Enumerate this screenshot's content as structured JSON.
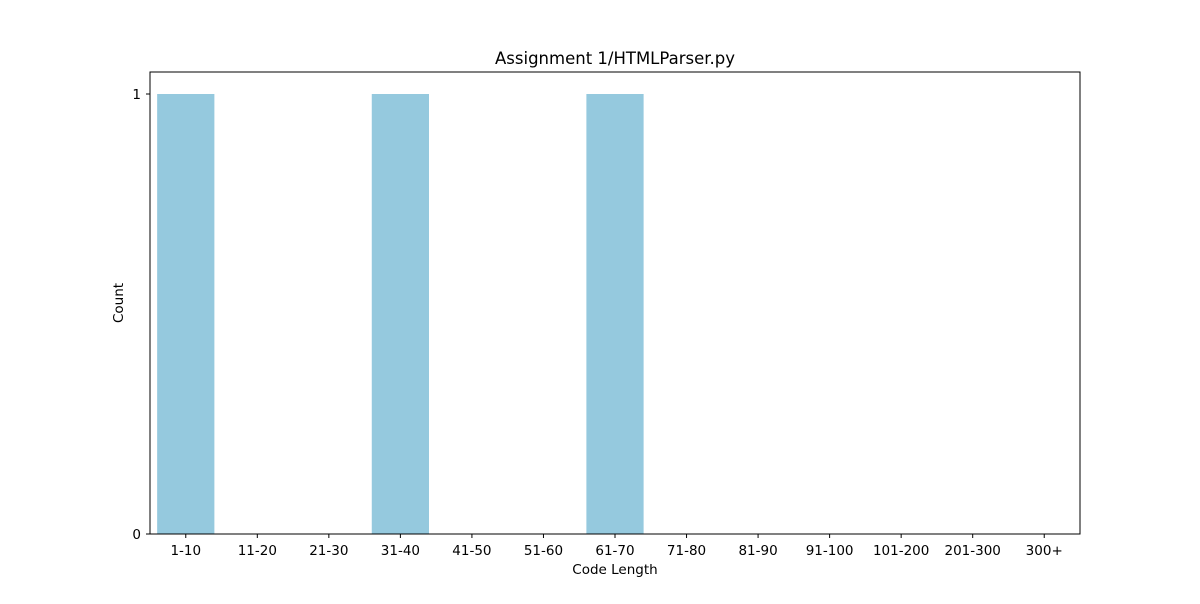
{
  "chart_data": {
    "type": "bar",
    "title": "Assignment 1/HTMLParser.py",
    "xlabel": "Code Length",
    "ylabel": "Count",
    "categories": [
      "1-10",
      "11-20",
      "21-30",
      "31-40",
      "41-50",
      "51-60",
      "61-70",
      "71-80",
      "81-90",
      "91-100",
      "101-200",
      "201-300",
      "300+"
    ],
    "values": [
      1,
      0,
      0,
      1,
      0,
      0,
      1,
      0,
      0,
      0,
      0,
      0,
      0
    ],
    "ylim": [
      0,
      1.05
    ],
    "yticks": [
      0,
      1
    ],
    "bar_color": "#95c9de",
    "grid": false,
    "legend": "none"
  }
}
